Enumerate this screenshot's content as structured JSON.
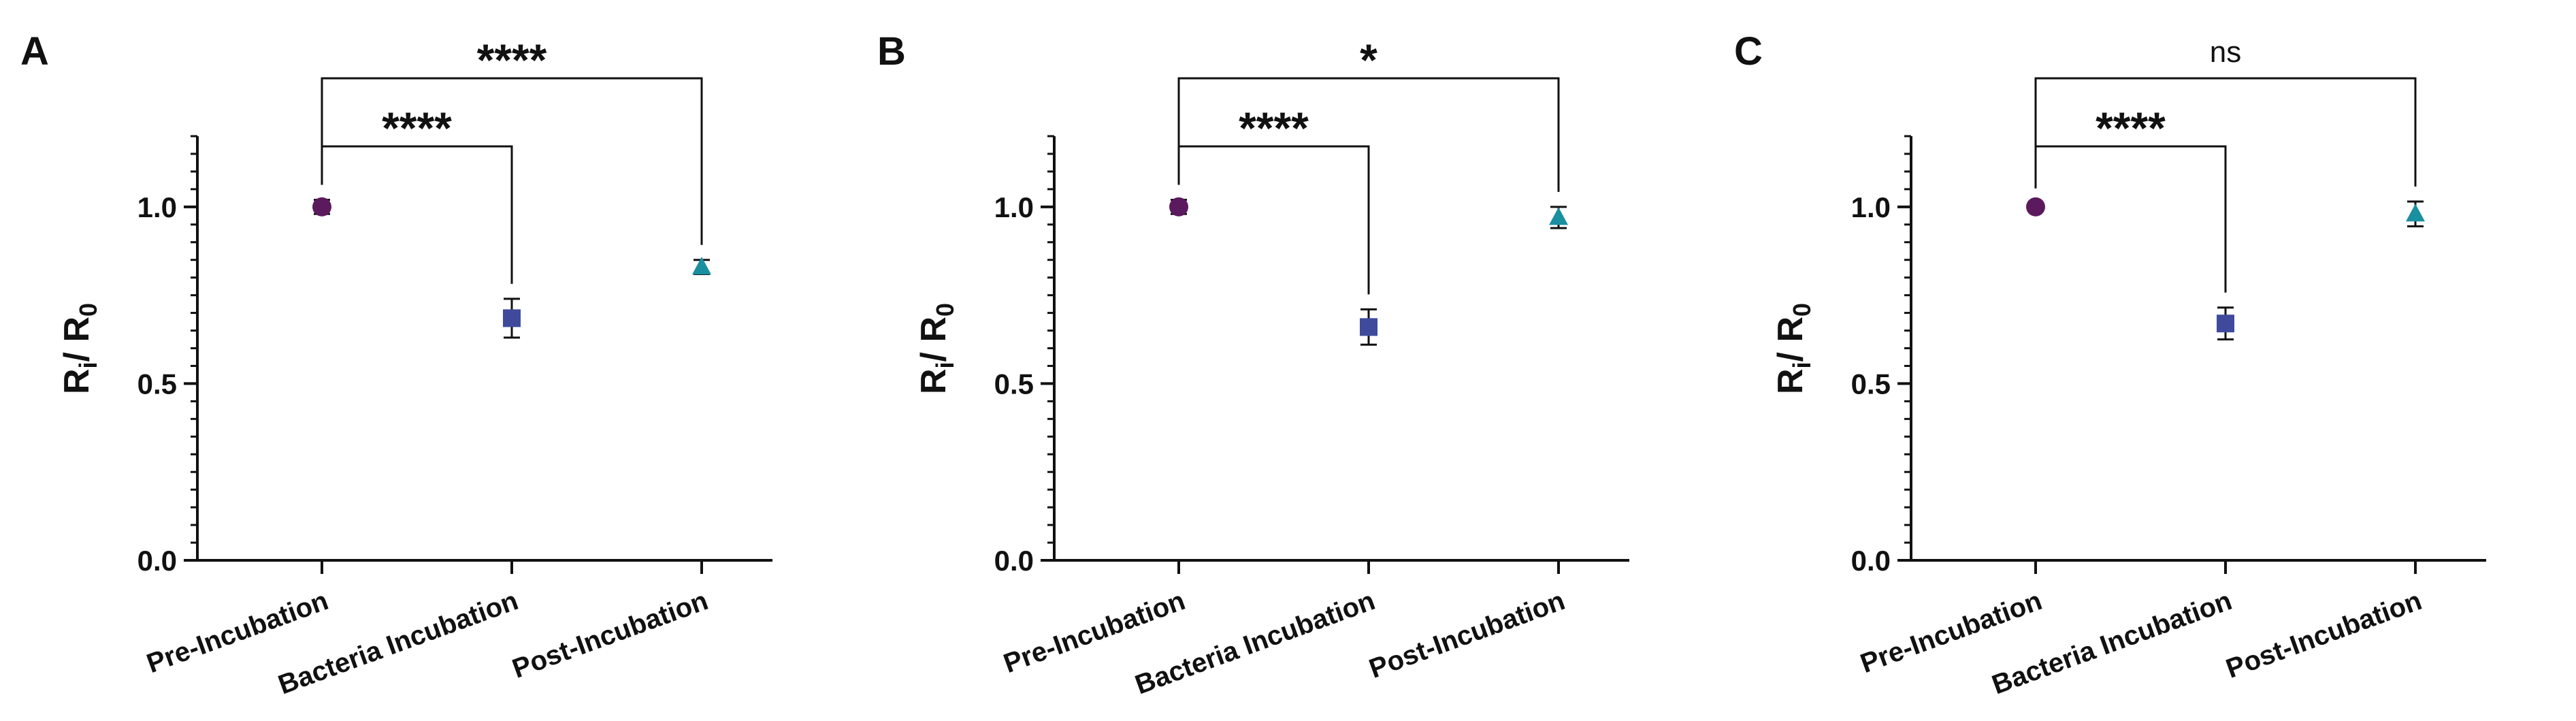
{
  "chart_data": [
    {
      "type": "point",
      "panel": "A",
      "ylabel": [
        "R",
        "i",
        "/ R",
        "0"
      ],
      "categories": [
        "Pre-Incubation",
        "Bacteria Incubation",
        "Post-Incubation"
      ],
      "values": [
        1.0,
        0.685,
        0.83
      ],
      "errors": [
        0.02,
        0.055,
        0.02
      ],
      "colors": [
        "#5c1a5e",
        "#3f4a9c",
        "#1a8fa0"
      ],
      "markers": [
        "circle",
        "square",
        "triangle"
      ],
      "ylim": [
        0,
        1.2
      ],
      "yticks": [
        {
          "value": 0,
          "label": "0.0"
        },
        {
          "value": 0.5,
          "label": "0.5"
        },
        {
          "value": 1,
          "label": "1.0"
        }
      ],
      "yminor_step": 0.05,
      "comparisons": [
        {
          "groups": [
            "Pre-Incubation",
            "Bacteria Incubation"
          ],
          "label": "****"
        },
        {
          "groups": [
            "Pre-Incubation",
            "Post-Incubation"
          ],
          "label": "****"
        }
      ]
    },
    {
      "type": "point",
      "panel": "B",
      "ylabel": [
        "R",
        "i",
        "/ R",
        "0"
      ],
      "categories": [
        "Pre-Incubation",
        "Bacteria Incubation",
        "Post-Incubation"
      ],
      "values": [
        1.0,
        0.66,
        0.97
      ],
      "errors": [
        0.02,
        0.05,
        0.03
      ],
      "colors": [
        "#5c1a5e",
        "#3f4a9c",
        "#1a8fa0"
      ],
      "markers": [
        "circle",
        "square",
        "triangle"
      ],
      "ylim": [
        0,
        1.2
      ],
      "yticks": [
        {
          "value": 0,
          "label": "0.0"
        },
        {
          "value": 0.5,
          "label": "0.5"
        },
        {
          "value": 1,
          "label": "1.0"
        }
      ],
      "yminor_step": 0.05,
      "comparisons": [
        {
          "groups": [
            "Pre-Incubation",
            "Bacteria Incubation"
          ],
          "label": "****"
        },
        {
          "groups": [
            "Pre-Incubation",
            "Post-Incubation"
          ],
          "label": "*"
        }
      ]
    },
    {
      "type": "point",
      "panel": "C",
      "ylabel": [
        "R",
        "i",
        "/ R",
        "0"
      ],
      "categories": [
        "Pre-Incubation",
        "Bacteria Incubation",
        "Post-Incubation"
      ],
      "values": [
        1.0,
        0.67,
        0.98
      ],
      "errors": [
        0.01,
        0.045,
        0.035
      ],
      "colors": [
        "#5c1a5e",
        "#3f4a9c",
        "#1a8fa0"
      ],
      "markers": [
        "circle",
        "square",
        "triangle"
      ],
      "ylim": [
        0,
        1.2
      ],
      "yticks": [
        {
          "value": 0,
          "label": "0.0"
        },
        {
          "value": 0.5,
          "label": "0.5"
        },
        {
          "value": 1,
          "label": "1.0"
        }
      ],
      "yminor_step": 0.05,
      "comparisons": [
        {
          "groups": [
            "Pre-Incubation",
            "Bacteria Incubation"
          ],
          "label": "****"
        },
        {
          "groups": [
            "Pre-Incubation",
            "Post-Incubation"
          ],
          "label": "ns"
        }
      ]
    }
  ]
}
